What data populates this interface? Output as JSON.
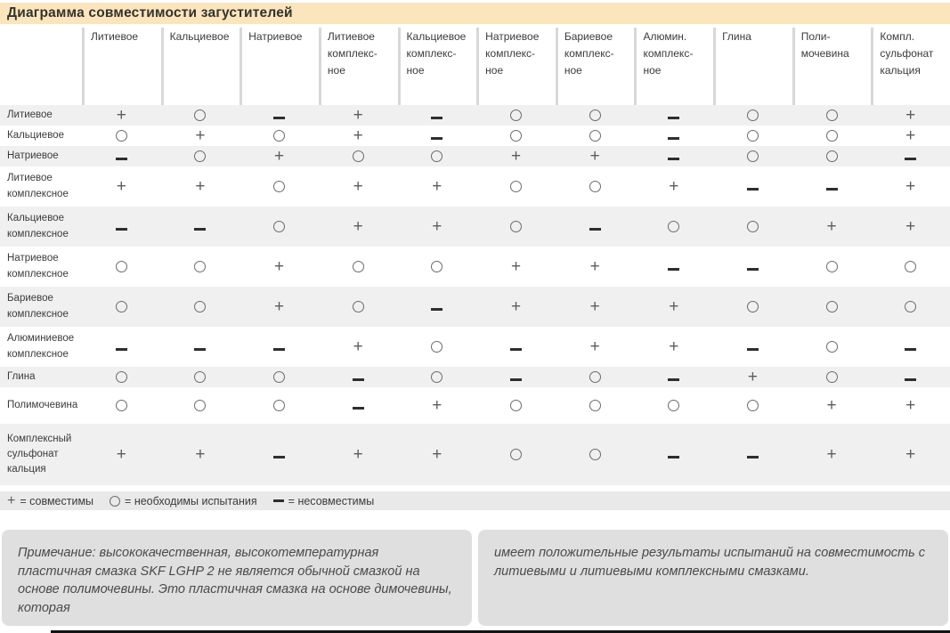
{
  "title": "Диаграмма совместимости загустителей",
  "chart_data": {
    "type": "table",
    "title": "Диаграмма совместимости загустителей",
    "symbol_legend": {
      "+": "совместимы",
      "o": "необходимы испытания",
      "-": "несовместимы"
    },
    "column_headers": [
      "Литиевое",
      "Кальциевое",
      "Натриевое",
      "Литиевое\nкомплекс-\nное",
      "Кальциевое\nкомплекс-\nное",
      "Натриевое\nкомплекс-\nное",
      "Бариевое\nкомплекс-\nное",
      "Алюмин.\nкомплекс-\nное",
      "Глина",
      "Поли-\nмочевина",
      "Компл.\nсульфонат\nкальция"
    ],
    "rows": [
      {
        "label": "Литиевое",
        "cells": [
          "+",
          "o",
          "-",
          "+",
          "-",
          "o",
          "o",
          "-",
          "o",
          "o",
          "+"
        ]
      },
      {
        "label": "Кальциевое",
        "cells": [
          "o",
          "+",
          "o",
          "+",
          "-",
          "o",
          "o",
          "-",
          "o",
          "o",
          "+"
        ]
      },
      {
        "label": "Натриевое",
        "cells": [
          "-",
          "o",
          "+",
          "o",
          "o",
          "+",
          "+",
          "-",
          "o",
          "o",
          "-"
        ]
      },
      {
        "label": "Литиевое\nкомплексное",
        "cells": [
          "+",
          "+",
          "o",
          "+",
          "+",
          "o",
          "o",
          "+",
          "-",
          "-",
          "+"
        ]
      },
      {
        "label": "Кальциевое\nкомплексное",
        "cells": [
          "-",
          "-",
          "o",
          "+",
          "+",
          "o",
          "-",
          "o",
          "o",
          "+",
          "+"
        ]
      },
      {
        "label": "Натриевое\nкомплексное",
        "cells": [
          "o",
          "o",
          "+",
          "o",
          "o",
          "+",
          "+",
          "-",
          "-",
          "o",
          "o"
        ]
      },
      {
        "label": "Бариевое\nкомплексное",
        "cells": [
          "o",
          "o",
          "+",
          "o",
          "-",
          "+",
          "+",
          "+",
          "o",
          "o",
          "o"
        ]
      },
      {
        "label": "Алюминиевое\nкомплексное",
        "cells": [
          "-",
          "-",
          "-",
          "+",
          "o",
          "-",
          "+",
          "+",
          "-",
          "o",
          "-"
        ]
      },
      {
        "label": "Глина",
        "cells": [
          "o",
          "o",
          "o",
          "-",
          "o",
          "-",
          "o",
          "-",
          "+",
          "o",
          "-"
        ]
      },
      {
        "label": "Полимочевина",
        "cells": [
          "o",
          "o",
          "o",
          "-",
          "+",
          "o",
          "o",
          "o",
          "o",
          "+",
          "+"
        ]
      },
      {
        "label": "Комплексный\nсульфонат\nкальция",
        "cells": [
          "+",
          "+",
          "-",
          "+",
          "+",
          "o",
          "o",
          "-",
          "-",
          "+",
          "+"
        ]
      }
    ]
  },
  "legend": {
    "items": [
      {
        "symbol": "+",
        "label": "= совместимы"
      },
      {
        "symbol": "o",
        "label": "= необходимы испытания"
      },
      {
        "symbol": "-",
        "label": "= несовместимы"
      }
    ]
  },
  "notes": [
    "Примечание: высококачественная, высокотемпературная пластичная смазка SKF LGHP 2 не является обычной смазкой на основе полимочевины. Это пластичная смазка на основе димочевины, которая",
    "имеет положительные результаты испытаний на совместимость с литиевыми и литиевыми комплексными смазками."
  ],
  "colors": {
    "title_bar_bg": "#fbe5bd",
    "row_stripe": "#f0f0f0",
    "legend_bg": "#e9e9e9",
    "note_bg": "#dfdfdf",
    "header_separator": "#d8d8d8"
  }
}
